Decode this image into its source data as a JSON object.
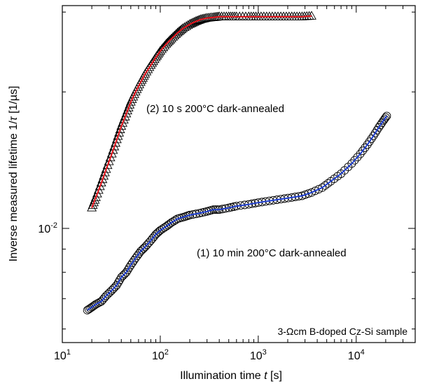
{
  "chart_data": {
    "type": "scatter",
    "xscale": "log",
    "yscale": "log",
    "xlabel_prefix": "Illumination time ",
    "xlabel_var": "t",
    "xlabel_unit": " [s]",
    "ylabel_prefix": "Inverse measured lifetime 1/",
    "ylabel_var": "τ",
    "ylabel_unit": " [1/µs]",
    "xlim": [
      10,
      40000
    ],
    "ylim": [
      0.0056,
      0.031
    ],
    "x_ticks": [
      {
        "base": "10",
        "exp": "1",
        "value": 10
      },
      {
        "base": "10",
        "exp": "2",
        "value": 100
      },
      {
        "base": "10",
        "exp": "3",
        "value": 1000
      },
      {
        "base": "10",
        "exp": "4",
        "value": 10000
      }
    ],
    "y_ticks": [
      {
        "base": "10",
        "exp": "-2",
        "value": 0.01
      }
    ],
    "grid": false,
    "annotations": {
      "series2_label": "(2) 10 s 200°C dark-annealed",
      "series1_label": "(1) 10 min 200°C dark-annealed",
      "sample_label": "3-Ωcm B-doped Cz-Si sample"
    },
    "series": [
      {
        "marker": "triangle",
        "fit_color": "#e8141c",
        "points": [
          [
            20,
            0.0111
          ],
          [
            22,
            0.0117
          ],
          [
            25,
            0.0126
          ],
          [
            28,
            0.0135
          ],
          [
            32,
            0.0146
          ],
          [
            36,
            0.0157
          ],
          [
            40,
            0.0168
          ],
          [
            45,
            0.0179
          ],
          [
            50,
            0.019
          ],
          [
            56,
            0.02
          ],
          [
            63,
            0.021
          ],
          [
            70,
            0.0219
          ],
          [
            80,
            0.0229
          ],
          [
            90,
            0.0238
          ],
          [
            100,
            0.0246
          ],
          [
            115,
            0.0255
          ],
          [
            130,
            0.0262
          ],
          [
            150,
            0.027
          ],
          [
            170,
            0.0276
          ],
          [
            200,
            0.0282
          ],
          [
            230,
            0.0286
          ],
          [
            260,
            0.0289
          ],
          [
            300,
            0.0291
          ],
          [
            350,
            0.0292
          ],
          [
            400,
            0.0293
          ],
          [
            500,
            0.0293
          ],
          [
            600,
            0.0293
          ],
          [
            800,
            0.0293
          ],
          [
            1000,
            0.0293
          ],
          [
            1300,
            0.0293
          ],
          [
            1700,
            0.0293
          ],
          [
            2200,
            0.0293
          ],
          [
            2800,
            0.0293
          ],
          [
            3500,
            0.0294
          ]
        ]
      },
      {
        "marker": "circle",
        "fit_color": "#1f3fd1",
        "points": [
          [
            18,
            0.0066
          ],
          [
            20,
            0.0067
          ],
          [
            22,
            0.0068
          ],
          [
            25,
            0.0069
          ],
          [
            28,
            0.0071
          ],
          [
            32,
            0.0073
          ],
          [
            36,
            0.0075
          ],
          [
            40,
            0.0078
          ],
          [
            45,
            0.008
          ],
          [
            50,
            0.0083
          ],
          [
            56,
            0.0086
          ],
          [
            63,
            0.0089
          ],
          [
            70,
            0.0091
          ],
          [
            80,
            0.0094
          ],
          [
            90,
            0.0097
          ],
          [
            100,
            0.0099
          ],
          [
            115,
            0.0101
          ],
          [
            130,
            0.0103
          ],
          [
            150,
            0.0105
          ],
          [
            175,
            0.0106
          ],
          [
            200,
            0.0107
          ],
          [
            250,
            0.0108
          ],
          [
            300,
            0.0109
          ],
          [
            350,
            0.011
          ],
          [
            400,
            0.011
          ],
          [
            500,
            0.0111
          ],
          [
            600,
            0.0112
          ],
          [
            800,
            0.0113
          ],
          [
            1000,
            0.0114
          ],
          [
            1300,
            0.0115
          ],
          [
            1700,
            0.0116
          ],
          [
            2200,
            0.0117
          ],
          [
            2800,
            0.0118
          ],
          [
            3500,
            0.012
          ],
          [
            4500,
            0.0123
          ],
          [
            5500,
            0.0127
          ],
          [
            7000,
            0.0132
          ],
          [
            9000,
            0.0139
          ],
          [
            11000,
            0.0146
          ],
          [
            13000,
            0.0153
          ],
          [
            15000,
            0.016
          ],
          [
            17000,
            0.0167
          ],
          [
            19000,
            0.0173
          ],
          [
            20500,
            0.0177
          ]
        ]
      }
    ]
  }
}
